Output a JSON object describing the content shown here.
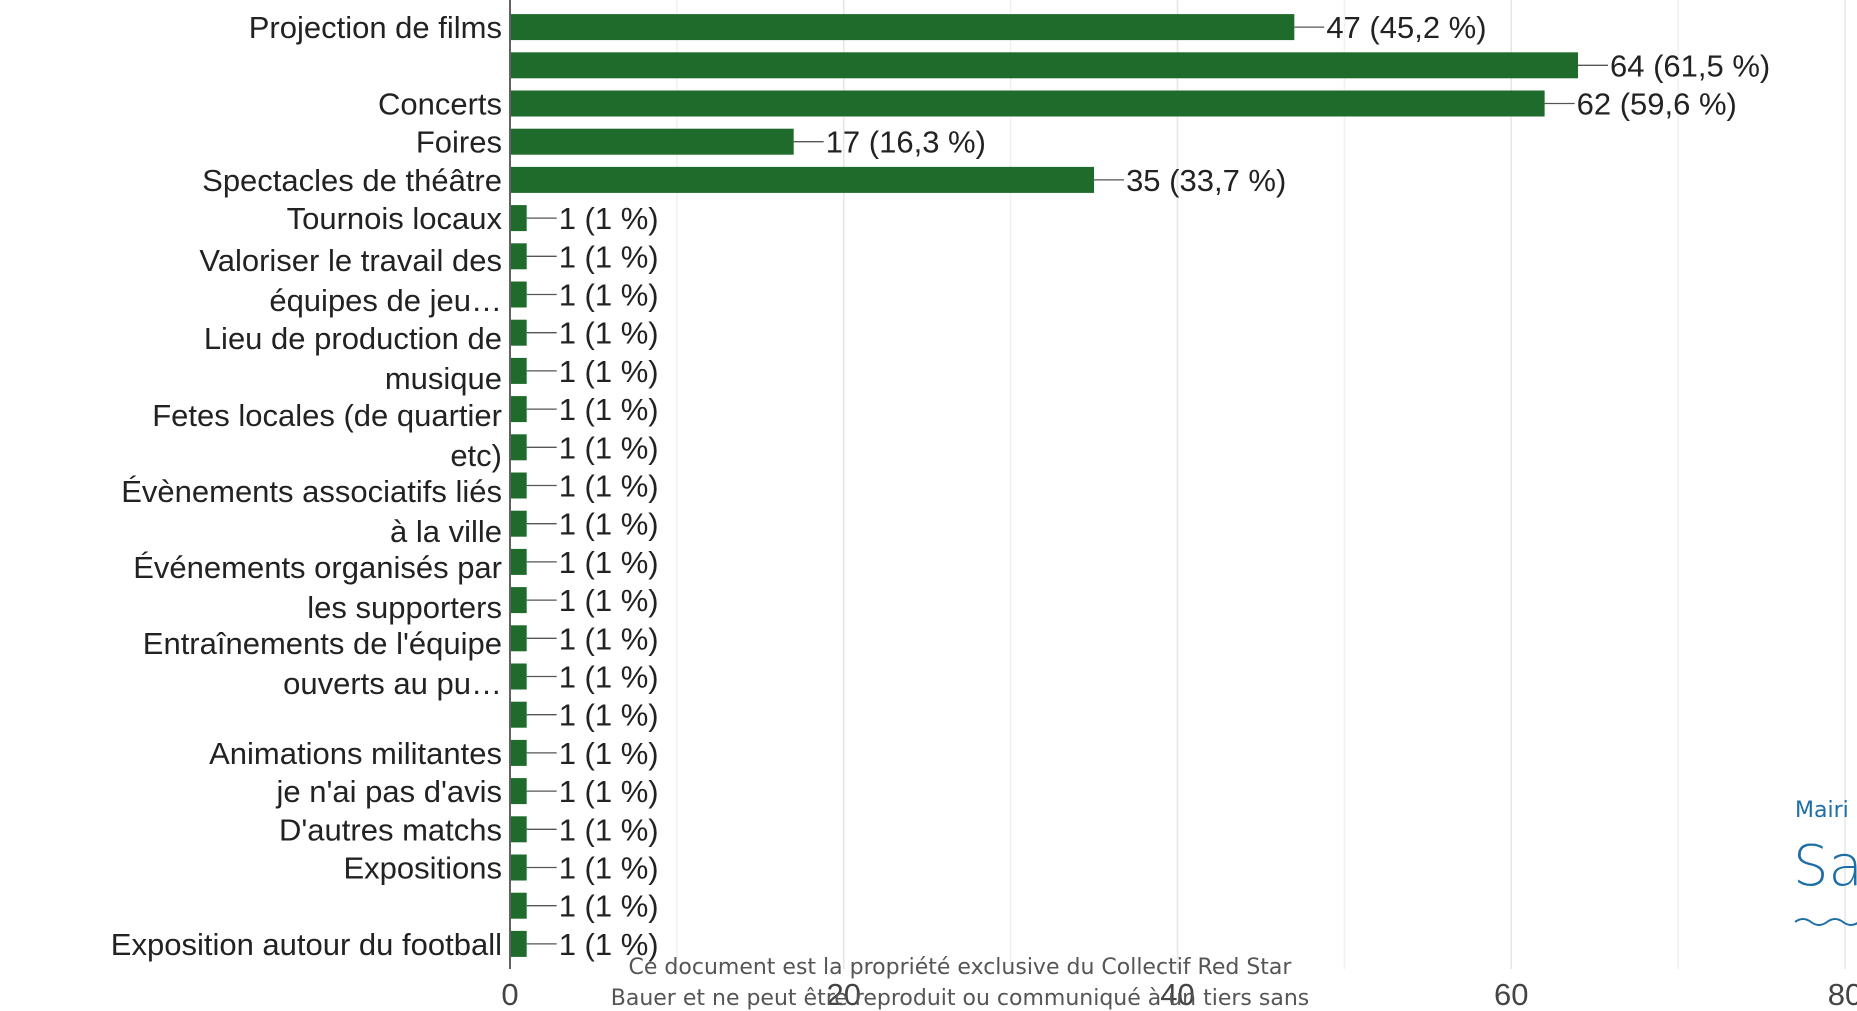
{
  "chart_data": {
    "type": "bar",
    "orientation": "horizontal",
    "bar_color": "#1e6b2c",
    "grid": true,
    "xlim": [
      0,
      80
    ],
    "x_ticks": [
      "0",
      "20",
      "40",
      "60",
      "80"
    ],
    "categories": [
      "Projection de films",
      "",
      "Concerts",
      "Foires",
      "Spectacles de théâtre",
      "Tournois locaux",
      "",
      "",
      "",
      "",
      "",
      "",
      "",
      "",
      "",
      "",
      "",
      "",
      "",
      "Animations militantes",
      "je n'ai pas d'avis",
      "D'autres matchs",
      "Expositions",
      "",
      "Exposition autour du football"
    ],
    "values": [
      47,
      64,
      62,
      17,
      35,
      1,
      1,
      1,
      1,
      1,
      1,
      1,
      1,
      1,
      1,
      1,
      1,
      1,
      1,
      1,
      1,
      1,
      1,
      1,
      1
    ],
    "value_labels": [
      "47 (45,2 %)",
      "64 (61,5 %)",
      "62 (59,6 %)",
      "17 (16,3 %)",
      "35 (33,7 %)",
      "1 (1 %)",
      "1 (1 %)",
      "1 (1 %)",
      "1 (1 %)",
      "1 (1 %)",
      "1 (1 %)",
      "1 (1 %)",
      "1 (1 %)",
      "1 (1 %)",
      "1 (1 %)",
      "1 (1 %)",
      "1 (1 %)",
      "1 (1 %)",
      "1 (1 %)",
      "1 (1 %)",
      "1 (1 %)",
      "1 (1 %)",
      "1 (1 %)",
      "1 (1 %)",
      "1 (1 %)"
    ],
    "extra_labels": [
      "Valoriser le travail des",
      "équipes de jeu…",
      "Lieu de production de",
      "musique",
      "Fetes locales (de quartier",
      "etc)",
      "Évènements associatifs liés",
      "à la ville",
      "Événements organisés par",
      "les supporters",
      "Entraînements de l'équipe",
      "ouverts au pu…"
    ]
  },
  "footer": {
    "line1": "Ce document est la propriété exclusive du Collectif Red Star",
    "line2": "Bauer et ne peut être reproduit ou communiqué à un tiers sans"
  },
  "logo": {
    "small": "Mairi",
    "big": "Sa"
  }
}
